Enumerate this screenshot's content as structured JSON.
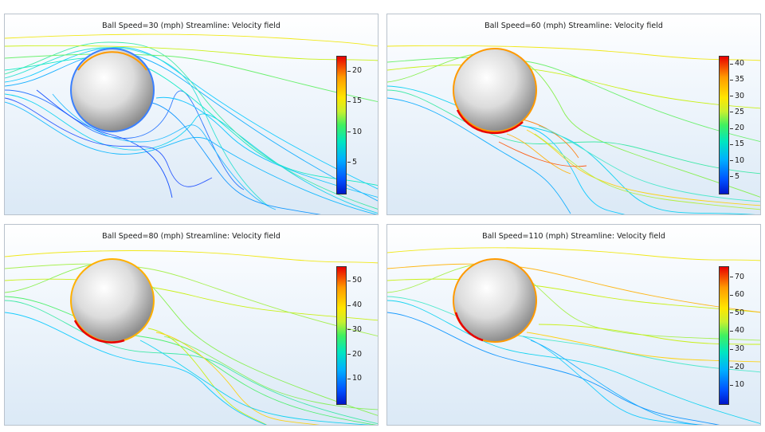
{
  "panels": [
    {
      "title": "Ball Speed=30 (mph) Streamline: Velocity field",
      "ticks": [
        "20",
        "15",
        "10",
        "5"
      ],
      "tick_values": [
        20,
        15,
        10,
        5
      ],
      "max": 22.5
    },
    {
      "title": "Ball Speed=60 (mph) Streamline: Velocity field",
      "ticks": [
        "40",
        "35",
        "30",
        "25",
        "20",
        "15",
        "10",
        "5"
      ],
      "tick_values": [
        40,
        35,
        30,
        25,
        20,
        15,
        10,
        5
      ],
      "max": 42.5
    },
    {
      "title": "Ball Speed=80 (mph) Streamline: Velocity field",
      "ticks": [
        "50",
        "40",
        "30",
        "20",
        "10"
      ],
      "tick_values": [
        50,
        40,
        30,
        20,
        10
      ],
      "max": 56
    },
    {
      "title": "Ball Speed=110 (mph) Streamline: Velocity field",
      "ticks": [
        "70",
        "60",
        "50",
        "40",
        "30",
        "20",
        "10"
      ],
      "tick_values": [
        70,
        60,
        50,
        40,
        30,
        20,
        10
      ],
      "max": 76
    }
  ]
}
